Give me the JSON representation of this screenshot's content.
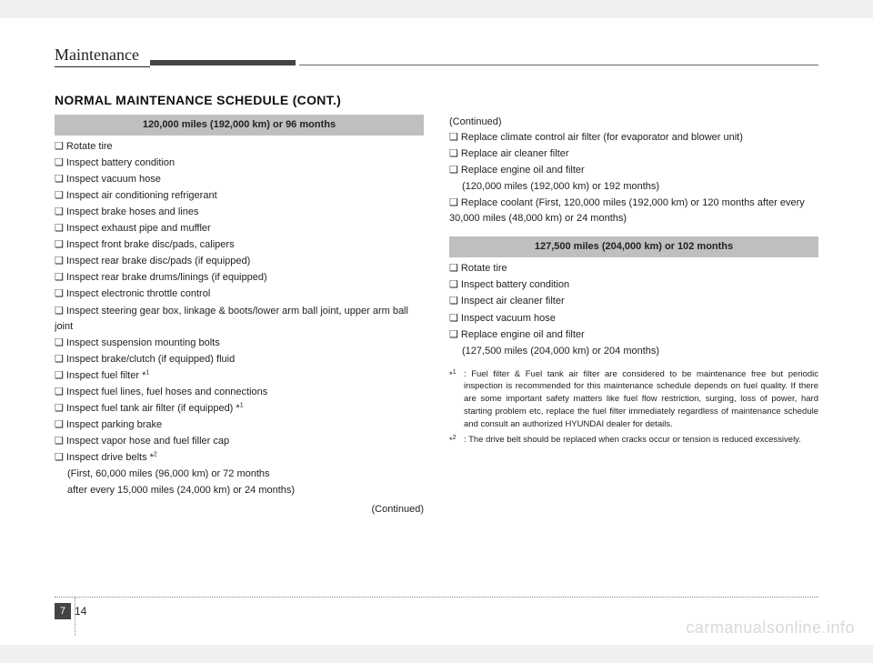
{
  "header": {
    "title": "Maintenance"
  },
  "section_title": "NORMAL MAINTENANCE SCHEDULE (CONT.)",
  "left": {
    "bar": "120,000 miles (192,000 km) or 96 months",
    "items": [
      "❑ Rotate tire",
      "❑ Inspect battery condition",
      "❑ Inspect vacuum hose",
      "❑ Inspect air conditioning refrigerant",
      "❑ Inspect brake hoses and lines",
      "❑ Inspect exhaust pipe and muffler",
      "❑ Inspect front brake disc/pads, calipers",
      "❑ Inspect rear brake disc/pads (if equipped)",
      "❑ Inspect rear brake drums/linings (if equipped)",
      "❑ Inspect electronic throttle control",
      "❑ Inspect steering gear box, linkage & boots/lower arm ball joint, upper arm ball joint",
      "❑ Inspect suspension mounting bolts",
      "❑ Inspect brake/clutch (if equipped) fluid",
      "❑ Inspect fuel filter *",
      "❑ Inspect fuel lines, fuel hoses and connections",
      "❑ Inspect fuel tank air filter (if equipped) *",
      "❑ Inspect parking brake",
      "❑ Inspect vapor hose and fuel filler cap"
    ],
    "drive_belts_line": "❑ Inspect drive belts *",
    "drive_belts_sub1": "(First, 60,000 miles (96,000 km) or 72 months",
    "drive_belts_sub2": " after every 15,000 miles (24,000 km) or 24 months)",
    "continued": "(Continued)"
  },
  "right": {
    "continued": "(Continued)",
    "items_top": [
      "❑ Replace climate control air filter (for evaporator and blower unit)",
      "❑ Replace air cleaner filter"
    ],
    "oil_line": "❑ Replace engine oil and filter",
    "oil_sub": "(120,000 miles (192,000 km) or 192 months)",
    "coolant": "❑ Replace coolant (First, 120,000 miles (192,000 km) or 120 months after every 30,000 miles (48,000 km) or 24 months)",
    "bar2": "127,500 miles (204,000 km) or 102 months",
    "items2": [
      "❑ Rotate tire",
      "❑ Inspect battery condition",
      "❑ Inspect air cleaner filter",
      "❑ Inspect vacuum hose"
    ],
    "oil2_line": "❑ Replace engine oil and filter",
    "oil2_sub": "(127,500 miles (204,000 km) or 204 months)"
  },
  "footnotes": {
    "fn1_label": "*",
    "fn1_sup": "1",
    "fn1_text": ": Fuel filter & Fuel tank air filter are considered to be maintenance free but periodic inspection is recommended for this maintenance schedule depends on fuel quality. If there are some important safety matters like fuel flow restriction, surging, loss of power, hard starting problem etc, replace the fuel filter immediately regardless  of maintenance schedule and consult an authorized HYUNDAI dealer for details.",
    "fn2_label": "*",
    "fn2_sup": "2",
    "fn2_text": ": The drive belt should be replaced when cracks occur or tension is reduced excessively."
  },
  "page": {
    "section": "7",
    "number": "14"
  },
  "watermark": "carmanualsonline.info"
}
